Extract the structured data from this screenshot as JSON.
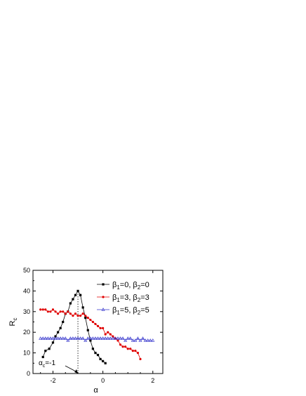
{
  "chart_data": {
    "type": "line",
    "xlabel": "α",
    "ylabel": {
      "main": "R",
      "sub": "c"
    },
    "xlim": [
      -2.8,
      2.4
    ],
    "ylim": [
      0,
      50
    ],
    "x_ticks": [
      -2,
      0,
      2
    ],
    "y_ticks": [
      0,
      10,
      20,
      30,
      40,
      50
    ],
    "grid": false,
    "legend_position": "top-right",
    "annotation": {
      "text_main": "α",
      "text_sub": "c",
      "text_rest": "=-1",
      "x": -1,
      "y": 0
    },
    "series": [
      {
        "name": "β1=0, β2=0",
        "label": {
          "a": "β",
          "a_sub": "1",
          "b": "=0, β",
          "b_sub": "2",
          "c": "=0"
        },
        "color": "#000000",
        "marker": "square",
        "points": [
          [
            -2.4,
            8
          ],
          [
            -2.3,
            11
          ],
          [
            -2.15,
            12
          ],
          [
            -2.0,
            15
          ],
          [
            -1.9,
            18
          ],
          [
            -1.8,
            20
          ],
          [
            -1.7,
            22
          ],
          [
            -1.6,
            25
          ],
          [
            -1.5,
            29
          ],
          [
            -1.4,
            30
          ],
          [
            -1.3,
            34
          ],
          [
            -1.2,
            36
          ],
          [
            -1.1,
            38
          ],
          [
            -1.0,
            40
          ],
          [
            -0.9,
            38
          ],
          [
            -0.8,
            32
          ],
          [
            -0.7,
            27
          ],
          [
            -0.6,
            21
          ],
          [
            -0.5,
            16
          ],
          [
            -0.4,
            12
          ],
          [
            -0.3,
            10
          ],
          [
            -0.2,
            9
          ],
          [
            -0.1,
            7
          ],
          [
            0.0,
            6
          ],
          [
            0.1,
            5
          ]
        ]
      },
      {
        "name": "β1=3, β2=3",
        "label": {
          "a": "β",
          "a_sub": "1",
          "b": "=3, β",
          "b_sub": "2",
          "c": "=3"
        },
        "color": "#e00000",
        "marker": "circle",
        "points": [
          [
            -2.5,
            31
          ],
          [
            -2.4,
            31
          ],
          [
            -2.3,
            31
          ],
          [
            -2.2,
            30
          ],
          [
            -2.1,
            30
          ],
          [
            -2.0,
            31
          ],
          [
            -1.9,
            30
          ],
          [
            -1.8,
            29
          ],
          [
            -1.7,
            30
          ],
          [
            -1.6,
            30
          ],
          [
            -1.5,
            29
          ],
          [
            -1.4,
            30
          ],
          [
            -1.3,
            29
          ],
          [
            -1.2,
            28
          ],
          [
            -1.1,
            29
          ],
          [
            -1.0,
            28
          ],
          [
            -0.9,
            28
          ],
          [
            -0.8,
            29
          ],
          [
            -0.7,
            28
          ],
          [
            -0.6,
            27
          ],
          [
            -0.5,
            26
          ],
          [
            -0.4,
            25
          ],
          [
            -0.3,
            24
          ],
          [
            -0.2,
            23
          ],
          [
            -0.1,
            22
          ],
          [
            0.0,
            22
          ],
          [
            0.1,
            19
          ],
          [
            0.2,
            20
          ],
          [
            0.3,
            19
          ],
          [
            0.4,
            18
          ],
          [
            0.5,
            17
          ],
          [
            0.6,
            16
          ],
          [
            0.7,
            14
          ],
          [
            0.8,
            13
          ],
          [
            0.9,
            13
          ],
          [
            1.0,
            12
          ],
          [
            1.1,
            12
          ],
          [
            1.2,
            11
          ],
          [
            1.3,
            11
          ],
          [
            1.4,
            10
          ],
          [
            1.5,
            7
          ]
        ]
      },
      {
        "name": "β1=5, β2=5",
        "label": {
          "a": "β",
          "a_sub": "1",
          "b": "=5, β",
          "b_sub": "2",
          "c": "=5"
        },
        "color": "#3333cc",
        "marker": "triangle",
        "points": [
          [
            -2.5,
            17
          ],
          [
            -2.4,
            17
          ],
          [
            -2.3,
            17
          ],
          [
            -2.2,
            17
          ],
          [
            -2.1,
            17
          ],
          [
            -2.0,
            17
          ],
          [
            -1.9,
            17
          ],
          [
            -1.8,
            17
          ],
          [
            -1.7,
            17
          ],
          [
            -1.6,
            17
          ],
          [
            -1.5,
            17
          ],
          [
            -1.4,
            16
          ],
          [
            -1.3,
            17
          ],
          [
            -1.2,
            17
          ],
          [
            -1.1,
            17
          ],
          [
            -1.0,
            17
          ],
          [
            -0.9,
            17
          ],
          [
            -0.8,
            17
          ],
          [
            -0.7,
            16
          ],
          [
            -0.6,
            17
          ],
          [
            -0.5,
            17
          ],
          [
            -0.4,
            17
          ],
          [
            -0.3,
            17
          ],
          [
            -0.2,
            17
          ],
          [
            -0.1,
            17
          ],
          [
            0.0,
            17
          ],
          [
            0.1,
            17
          ],
          [
            0.2,
            17
          ],
          [
            0.3,
            17
          ],
          [
            0.4,
            17
          ],
          [
            0.5,
            17
          ],
          [
            0.6,
            17
          ],
          [
            0.7,
            17
          ],
          [
            0.8,
            17
          ],
          [
            0.9,
            16
          ],
          [
            1.0,
            17
          ],
          [
            1.1,
            17
          ],
          [
            1.2,
            16
          ],
          [
            1.3,
            16
          ],
          [
            1.4,
            17
          ],
          [
            1.5,
            16
          ],
          [
            1.6,
            17
          ],
          [
            1.7,
            16
          ],
          [
            1.8,
            16
          ],
          [
            1.9,
            16
          ],
          [
            2.0,
            16
          ]
        ]
      }
    ]
  }
}
